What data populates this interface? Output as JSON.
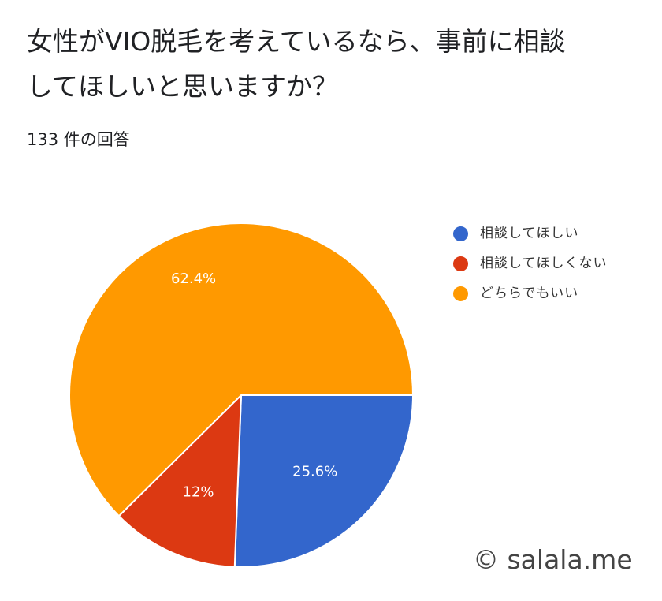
{
  "question": {
    "title": "女性がVIO脱毛を考えているなら、事前に相談してほしいと思いますか？"
  },
  "responses": {
    "count_text": "133 件の回答"
  },
  "watermark": {
    "text": "© salala.me"
  },
  "chart_data": {
    "type": "pie",
    "title": "",
    "legend_position": "right",
    "slices": [
      {
        "label": "相談してほしい",
        "value": 25.6,
        "data_label": "25.6%",
        "color": "#3366cc"
      },
      {
        "label": "相談してほしくない",
        "value": 12.0,
        "data_label": "12%",
        "color": "#dc3912"
      },
      {
        "label": "どちらでもいい",
        "value": 62.4,
        "data_label": "62.4%",
        "color": "#ff9900"
      }
    ]
  }
}
